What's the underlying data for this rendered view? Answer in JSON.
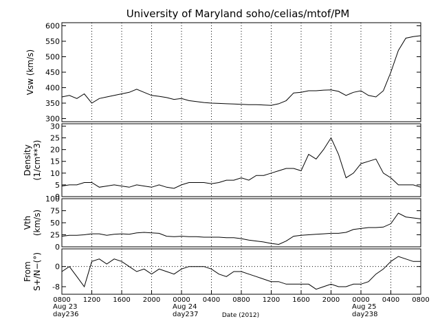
{
  "chart_data": {
    "title": "University of Maryland  soho/celias/mtof/PM",
    "type": "line",
    "xlabel": "Date (2012)",
    "x_ticks": [
      "0800",
      "1200",
      "1600",
      "2000",
      "0000",
      "0400",
      "0800",
      "1200",
      "1600",
      "2000",
      "0000",
      "0400",
      "0800"
    ],
    "x_range_hours": [
      0,
      48
    ],
    "date_labels": [
      {
        "hour": 0,
        "lines": [
          "Aug 23",
          "day236"
        ]
      },
      {
        "hour": 16,
        "lines": [
          "Aug 24",
          "day237"
        ]
      },
      {
        "hour": 40,
        "lines": [
          "Aug 25",
          "day238"
        ]
      }
    ],
    "grid": "dotted vertical",
    "panels": [
      {
        "key": "vsw",
        "ylabel_lines": [
          "Vsw (km/s)"
        ],
        "ylim": [
          290,
          610
        ],
        "yticks": [
          300,
          350,
          400,
          450,
          500,
          550,
          600
        ],
        "zero_line": false,
        "data": {
          "x": [
            0,
            1,
            2,
            3,
            4,
            5,
            6,
            7,
            8,
            9,
            10,
            11,
            12,
            13,
            14,
            15,
            16,
            17,
            18,
            19,
            20,
            21,
            22,
            23,
            24,
            25,
            26,
            27,
            28,
            29,
            30,
            31,
            32,
            33,
            34,
            35,
            36,
            37,
            38,
            39,
            40,
            41,
            42,
            43,
            44,
            45,
            46,
            47,
            48
          ],
          "y": [
            370,
            375,
            365,
            380,
            350,
            365,
            370,
            375,
            380,
            385,
            395,
            385,
            375,
            372,
            368,
            362,
            365,
            358,
            355,
            352,
            350,
            349,
            348,
            347,
            346,
            345,
            345,
            344,
            343,
            348,
            358,
            383,
            385,
            390,
            390,
            392,
            393,
            388,
            375,
            385,
            390,
            375,
            370,
            390,
            450,
            520,
            560,
            565,
            568
          ]
        }
      },
      {
        "key": "density",
        "ylabel_lines": [
          "Density",
          "(1/cm**3)"
        ],
        "ylim": [
          0,
          31
        ],
        "yticks": [
          0,
          5,
          10,
          15,
          20,
          25,
          30
        ],
        "zero_line": false,
        "data": {
          "x": [
            0,
            1,
            2,
            3,
            4,
            5,
            6,
            7,
            8,
            9,
            10,
            11,
            12,
            13,
            14,
            15,
            16,
            17,
            18,
            19,
            20,
            21,
            22,
            23,
            24,
            25,
            26,
            27,
            28,
            29,
            30,
            31,
            32,
            33,
            34,
            35,
            36,
            37,
            38,
            39,
            40,
            41,
            42,
            43,
            44,
            45,
            46,
            47,
            48
          ],
          "y": [
            4.5,
            5,
            5,
            6,
            6,
            4,
            4.5,
            5,
            4.5,
            4,
            5,
            4.5,
            4,
            5,
            4,
            3.5,
            5,
            6,
            6,
            6,
            5.5,
            6,
            7,
            7,
            8,
            7,
            9,
            9,
            10,
            11,
            12,
            12,
            11,
            18,
            16,
            20,
            25,
            18,
            8,
            10,
            14,
            15,
            16,
            10,
            8,
            5,
            5,
            5,
            4
          ]
        }
      },
      {
        "key": "vth",
        "ylabel_lines": [
          "Vth",
          "(km/s)"
        ],
        "ylim": [
          0,
          100
        ],
        "yticks": [
          0,
          25,
          50,
          75,
          100
        ],
        "zero_line": false,
        "data": {
          "x": [
            0,
            1,
            2,
            3,
            4,
            5,
            6,
            7,
            8,
            9,
            10,
            11,
            12,
            13,
            14,
            15,
            16,
            17,
            18,
            19,
            20,
            21,
            22,
            23,
            24,
            25,
            26,
            27,
            28,
            29,
            30,
            31,
            32,
            33,
            34,
            35,
            36,
            37,
            38,
            39,
            40,
            41,
            42,
            43,
            44,
            45,
            46,
            47,
            48
          ],
          "y": [
            22,
            24,
            24,
            25,
            27,
            27,
            24,
            26,
            27,
            26,
            29,
            30,
            29,
            28,
            22,
            21,
            22,
            21,
            21,
            20,
            20,
            20,
            19,
            19,
            17,
            14,
            12,
            10,
            7,
            5,
            12,
            22,
            24,
            25,
            26,
            27,
            28,
            28,
            30,
            36,
            38,
            40,
            40,
            41,
            48,
            70,
            62,
            60,
            58
          ]
        }
      },
      {
        "key": "from",
        "ylabel_lines": [
          "From",
          "S+/N−(°)"
        ],
        "ylim": [
          -11,
          7
        ],
        "yticks": [
          -8,
          0
        ],
        "zero_line": true,
        "data": {
          "x": [
            0,
            1,
            2,
            3,
            4,
            5,
            6,
            7,
            8,
            9,
            10,
            11,
            12,
            13,
            14,
            15,
            16,
            17,
            18,
            19,
            20,
            21,
            22,
            23,
            24,
            25,
            26,
            27,
            28,
            29,
            30,
            31,
            32,
            33,
            34,
            35,
            36,
            37,
            38,
            39,
            40,
            41,
            42,
            43,
            44,
            45,
            46,
            47,
            48
          ],
          "y": [
            -2,
            0,
            -4,
            -8,
            2,
            3,
            1,
            3,
            2,
            0,
            -2,
            -1,
            -3,
            -1,
            -2,
            -3,
            -1,
            0,
            0,
            0,
            -1,
            -3,
            -4,
            -2,
            -2,
            -3,
            -4,
            -5,
            -6,
            -6,
            -7,
            -7,
            -7,
            -7,
            -9,
            -8,
            -7,
            -8,
            -8,
            -7,
            -7,
            -6,
            -3,
            -1,
            2,
            4,
            3,
            2,
            2
          ]
        }
      }
    ]
  }
}
